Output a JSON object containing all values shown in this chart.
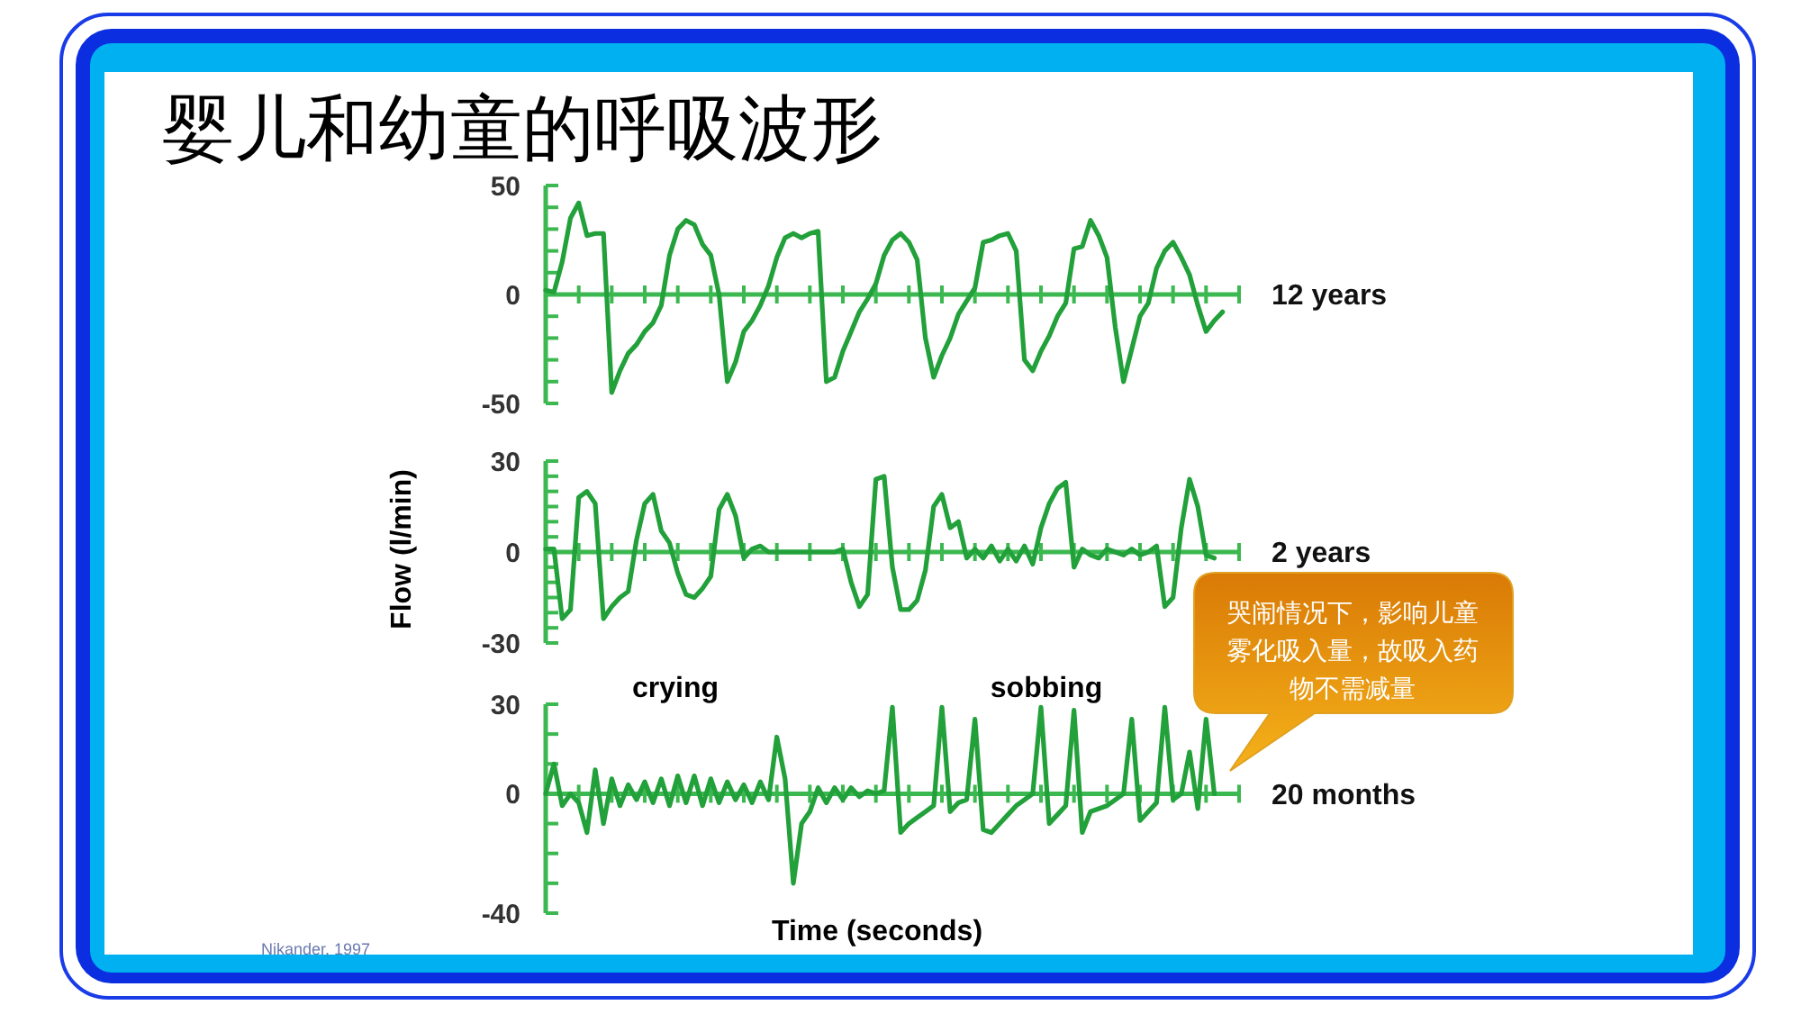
{
  "chart_data": [
    {
      "type": "line",
      "title": "婴儿和幼童的呼吸波形",
      "categories": [
        null,
        null,
        null,
        null,
        null,
        null,
        null,
        null,
        null,
        null,
        null,
        null,
        null,
        null,
        null,
        null,
        null,
        null,
        null,
        null,
        null,
        null,
        null,
        null,
        null,
        null,
        null,
        null,
        null,
        null,
        null,
        null,
        null,
        null,
        null,
        null,
        null,
        null,
        null,
        null,
        null,
        null,
        null,
        null,
        null,
        null,
        null,
        null,
        null,
        null,
        null,
        null,
        null,
        null,
        null,
        null,
        null,
        null,
        null,
        null,
        null,
        null,
        null,
        null,
        null,
        null,
        null,
        null,
        null,
        null,
        null,
        null,
        null,
        null,
        null,
        null,
        null,
        null,
        null,
        null,
        null,
        null,
        null,
        null,
        null
      ],
      "series": [
        {
          "color": "#22a03a",
          "values": [
            2,
            1,
            15,
            35,
            42,
            27,
            28,
            28,
            -45,
            -35,
            -27,
            -23,
            -17,
            -13,
            -5,
            18,
            30,
            34,
            32,
            23,
            18,
            0,
            -40,
            -31,
            -17,
            -12,
            -5,
            4,
            17,
            26,
            28,
            26,
            28,
            29,
            -40,
            -38,
            -26,
            -17,
            -8,
            -2,
            5,
            18,
            25,
            28,
            24,
            16,
            -20,
            -38,
            -28,
            -20,
            -9,
            -3,
            3,
            24,
            25,
            27,
            28,
            20,
            -30,
            -35,
            -26,
            -19,
            -10,
            -4,
            21,
            22,
            34,
            27,
            17,
            -15,
            -40,
            -25,
            -10,
            -4,
            12,
            20,
            24,
            17,
            9,
            -5,
            -17,
            -12,
            -8,
            null,
            null
          ]
        }
      ],
      "ylim": [
        -50,
        50
      ],
      "yticks": [
        -50,
        {
          "value": -40,
          "label": null
        },
        {
          "value": -30,
          "label": null
        },
        {
          "value": -20,
          "label": null
        },
        {
          "value": -10,
          "label": null
        },
        0,
        {
          "value": 10,
          "label": null
        },
        {
          "value": 20,
          "label": null
        },
        {
          "value": 30,
          "label": null
        },
        {
          "value": 40,
          "label": null
        },
        50
      ],
      "ref_lines": [
        {
          "axis": "y",
          "value": 0,
          "color": "#3cb850"
        }
      ],
      "annotations": [
        "12 years"
      ]
    },
    {
      "type": "line",
      "ylabel": "Flow (l/min)",
      "categories": [
        null,
        null,
        null,
        null,
        null,
        null,
        null,
        null,
        null,
        null,
        null,
        null,
        null,
        null,
        null,
        null,
        null,
        null,
        null,
        null,
        null,
        null,
        null,
        null,
        null,
        null,
        null,
        null,
        null,
        null,
        null,
        null,
        null,
        null,
        null,
        null,
        null,
        null,
        null,
        null,
        null,
        null,
        null,
        null,
        null,
        null,
        null,
        null,
        null,
        null,
        null,
        null,
        null,
        null,
        null,
        null,
        null,
        null,
        null,
        null,
        null,
        null,
        null,
        null,
        null,
        null,
        null,
        null,
        null,
        null,
        null,
        null,
        null,
        null,
        null,
        null,
        null,
        null,
        null,
        null,
        null,
        null,
        null,
        null,
        null
      ],
      "series": [
        {
          "color": "#22a03a",
          "values": [
            1,
            1,
            -22,
            -19,
            18,
            20,
            16,
            -22,
            -18,
            -15,
            -13,
            4,
            16,
            19,
            7,
            3,
            -7,
            -14,
            -15,
            -12,
            -8,
            14,
            19,
            12,
            -2,
            1,
            2,
            0,
            0,
            0,
            0,
            0,
            0,
            0,
            0,
            0,
            1,
            -10,
            -18,
            -14,
            24,
            25,
            -5,
            -19,
            -19,
            -16,
            -6,
            15,
            19,
            8,
            10,
            -2,
            1,
            -2,
            2,
            -3,
            1,
            -3,
            2,
            -4,
            8,
            16,
            21,
            23,
            -5,
            1,
            -1,
            -2,
            1,
            0,
            -1,
            1,
            -1,
            0,
            2,
            -18,
            -15,
            8,
            24,
            15,
            -1,
            -2,
            null,
            null,
            null
          ]
        }
      ],
      "ylim": [
        -30,
        30
      ],
      "yticks": [
        -30,
        {
          "value": -25,
          "label": null
        },
        {
          "value": -20,
          "label": null
        },
        {
          "value": -15,
          "label": null
        },
        {
          "value": -10,
          "label": null
        },
        {
          "value": -5,
          "label": null
        },
        0,
        {
          "value": 5,
          "label": null
        },
        {
          "value": 10,
          "label": null
        },
        {
          "value": 15,
          "label": null
        },
        {
          "value": 20,
          "label": null
        },
        {
          "value": 25,
          "label": null
        },
        30
      ],
      "ref_lines": [
        {
          "axis": "y",
          "value": 0,
          "color": "#3cb850"
        }
      ],
      "annotations": [
        "2 years"
      ]
    },
    {
      "type": "line",
      "xlabel": "Time (seconds)",
      "categories": [
        null,
        null,
        null,
        null,
        null,
        null,
        null,
        null,
        null,
        null,
        null,
        null,
        null,
        null,
        null,
        null,
        null,
        null,
        null,
        null,
        null,
        null,
        null,
        null,
        null,
        null,
        null,
        null,
        null,
        null,
        null,
        null,
        null,
        null,
        null,
        null,
        null,
        null,
        null,
        null,
        null,
        null,
        null,
        null,
        null,
        null,
        null,
        null,
        null,
        null,
        null,
        null,
        null,
        null,
        null,
        null,
        null,
        null,
        null,
        null,
        null,
        null,
        null,
        null,
        null,
        null,
        null,
        null,
        null,
        null,
        null,
        null,
        null,
        null,
        null,
        null,
        null,
        null,
        null,
        null,
        null,
        null,
        null,
        null,
        null
      ],
      "series": [
        {
          "color": "#22a03a",
          "values": [
            0,
            10,
            -4,
            0,
            -3,
            -13,
            8,
            -10,
            5,
            -4,
            3,
            -2,
            4,
            -3,
            5,
            -4,
            6,
            -3,
            6,
            -4,
            5,
            -3,
            4,
            -2,
            3,
            -3,
            4,
            -2,
            19,
            5,
            -30,
            -10,
            -6,
            2,
            -3,
            2,
            -2,
            2,
            -1,
            1,
            0,
            1,
            29,
            -13,
            -10,
            -8,
            -6,
            -4,
            29,
            -6,
            -3,
            -2,
            25,
            -12,
            -13,
            -10,
            -7,
            -4,
            -2,
            0,
            29,
            -10,
            -7,
            -4,
            28,
            -13,
            -6,
            -5,
            -4,
            -2,
            0,
            25,
            -9,
            -6,
            -3,
            29,
            -2,
            0,
            14,
            -5,
            25,
            0,
            null,
            null,
            null
          ]
        }
      ],
      "ylim": [
        -40,
        30
      ],
      "yticks": [
        -40,
        {
          "value": -30,
          "label": null
        },
        {
          "value": -20,
          "label": null
        },
        {
          "value": -10,
          "label": null
        },
        0,
        {
          "value": 10,
          "label": null
        },
        {
          "value": 20,
          "label": null
        },
        30
      ],
      "ref_lines": [
        {
          "axis": "y",
          "value": 0,
          "color": "#3cb850"
        }
      ],
      "annotations": [
        "20 months",
        "crying",
        "sobbing",
        "哭闹情况下，影响儿童雾化吸入量，故吸入药物不需减量",
        "Nikander, 1997"
      ]
    }
  ]
}
